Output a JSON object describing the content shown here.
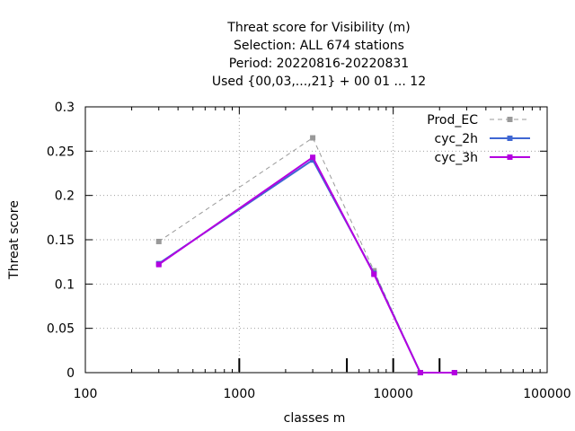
{
  "chart_data": {
    "type": "line",
    "title_lines": [
      "Threat score  for Visibility (m)",
      "Selection: ALL    674 stations",
      "Period: 20220816-20220831",
      "Used {00,03,...,21} + 00 01 ... 12"
    ],
    "xlabel": "classes m",
    "ylabel": "Threat score",
    "x_scale": "log",
    "xlim": [
      100,
      100000
    ],
    "ylim": [
      0,
      0.3
    ],
    "x_ticks": [
      {
        "value": 100,
        "label": "100"
      },
      {
        "value": 1000,
        "label": "1000"
      },
      {
        "value": 10000,
        "label": "10000"
      },
      {
        "value": 100000,
        "label": "100000"
      }
    ],
    "y_ticks": [
      {
        "value": 0,
        "label": "0"
      },
      {
        "value": 0.05,
        "label": "0.05"
      },
      {
        "value": 0.1,
        "label": "0.1"
      },
      {
        "value": 0.15,
        "label": "0.15"
      },
      {
        "value": 0.2,
        "label": "0.2"
      },
      {
        "value": 0.25,
        "label": "0.25"
      },
      {
        "value": 0.3,
        "label": "0.3"
      }
    ],
    "grid": true,
    "legend_position": "top-right",
    "class_markers": [
      1000,
      5000,
      10000,
      20000
    ],
    "series": [
      {
        "name": "Prod_EC",
        "color": "#999999",
        "dashed": true,
        "x": [
          300,
          3000,
          7500,
          15000,
          25000
        ],
        "y": [
          0.148,
          0.265,
          0.115,
          0.0,
          0.0
        ]
      },
      {
        "name": "cyc_2h",
        "color": "#3f67d3",
        "dashed": false,
        "x": [
          300,
          3000,
          7500,
          15000,
          25000
        ],
        "y": [
          0.123,
          0.24,
          0.112,
          0.0,
          0.0
        ]
      },
      {
        "name": "cyc_3h",
        "color": "#b400e0",
        "dashed": false,
        "x": [
          300,
          3000,
          7500,
          15000,
          25000
        ],
        "y": [
          0.122,
          0.243,
          0.111,
          0.0,
          0.0
        ]
      }
    ]
  }
}
